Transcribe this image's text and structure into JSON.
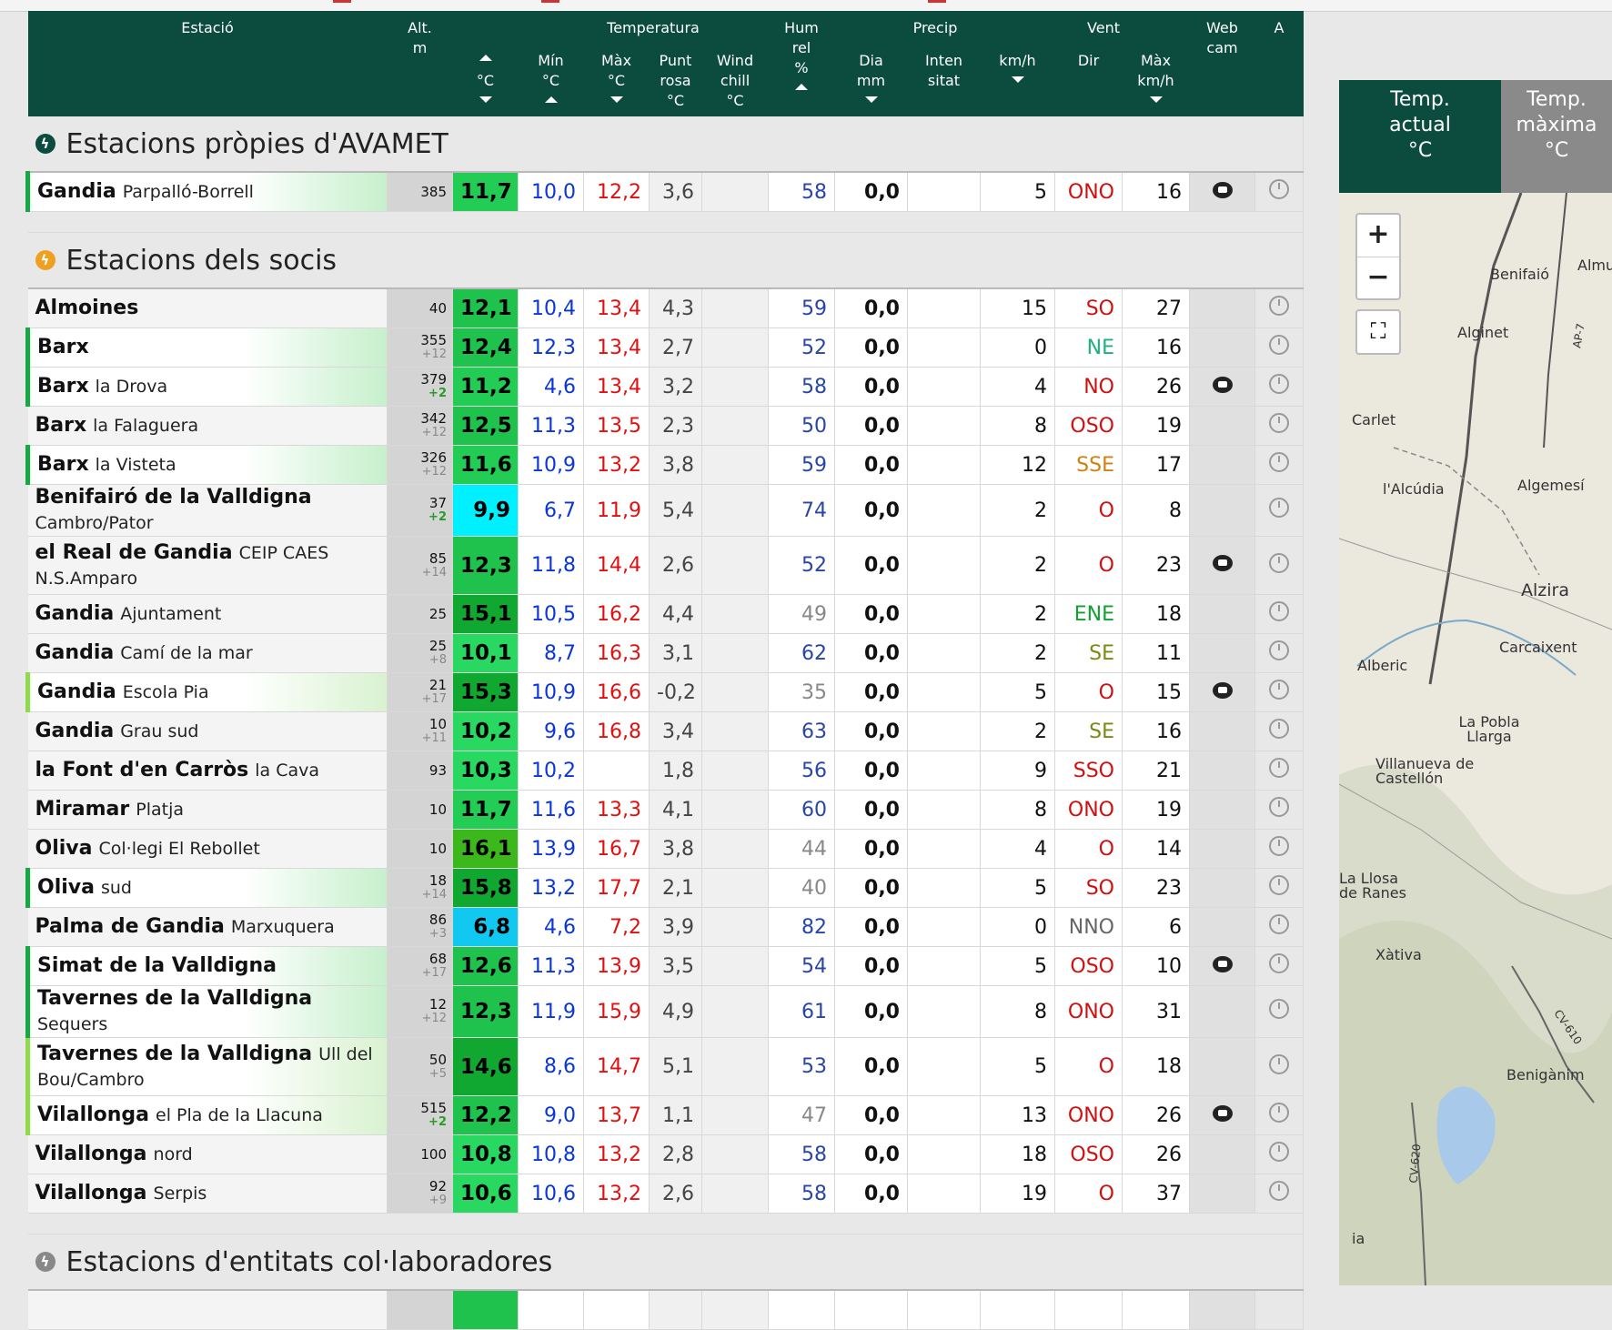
{
  "header": {
    "estacio": "Estació",
    "alt": [
      "Alt.",
      "m"
    ],
    "temperatura": "Temperatura",
    "temp_actual": "°C",
    "min": [
      "Mín",
      "°C"
    ],
    "max": [
      "Màx",
      "°C"
    ],
    "punt_rosa": [
      "Punt",
      "rosa",
      "°C"
    ],
    "wind_chill": [
      "Wind",
      "chill",
      "°C"
    ],
    "hum": [
      "Hum",
      "rel",
      "%"
    ],
    "precip": "Precip",
    "dia": [
      "Dia",
      "mm"
    ],
    "intensitat": [
      "Inten",
      "sitat"
    ],
    "vent": "Vent",
    "kmh": "km/h",
    "dir": "Dir",
    "max_kmh": [
      "Màx",
      "km/h"
    ],
    "webcam": [
      "Web",
      "cam"
    ],
    "a": "A"
  },
  "sections": [
    {
      "title": "Estacions pròpies d'AVAMET",
      "icon_color": "#0b4c3f",
      "rows": [
        {
          "name": "Gandia",
          "sub": "Parpalló-Borrell",
          "alt": "385",
          "altd": "",
          "tc": "11,7",
          "tcbg": "#22cc55",
          "min": "10,0",
          "max": "12,2",
          "dp": "3,6",
          "wc": "",
          "hum": "58",
          "humgray": false,
          "pr": "0,0",
          "in": "",
          "ws": "5",
          "wd": "ONO",
          "wdc": "#d01010",
          "wm": "16",
          "cam": true,
          "border": 1
        }
      ]
    },
    {
      "title": "Estacions dels socis",
      "icon_color": "#f0a020",
      "rows": [
        {
          "name": "Almoines",
          "sub": "",
          "alt": "40",
          "altd": "",
          "tc": "12,1",
          "tcbg": "#1ec24c",
          "min": "10,4",
          "max": "13,4",
          "dp": "4,3",
          "wc": "",
          "hum": "59",
          "humgray": false,
          "pr": "0,0",
          "in": "",
          "ws": "15",
          "wd": "SO",
          "wdc": "#d01010",
          "wm": "27",
          "cam": false,
          "border": 0
        },
        {
          "name": "Barx",
          "sub": "",
          "alt": "355",
          "altd": "+12",
          "altpos": false,
          "tc": "12,4",
          "tcbg": "#1ec24c",
          "min": "12,3",
          "max": "13,4",
          "dp": "2,7",
          "wc": "",
          "hum": "52",
          "humgray": false,
          "pr": "0,0",
          "in": "",
          "ws": "0",
          "wd": "NE",
          "wdc": "#20b080",
          "wm": "16",
          "cam": false,
          "border": 1
        },
        {
          "name": "Barx",
          "sub": "la Drova",
          "alt": "379",
          "altd": "+2",
          "altpos": true,
          "tc": "11,2",
          "tcbg": "#22cc55",
          "min": "4,6",
          "max": "13,4",
          "dp": "3,2",
          "wc": "",
          "hum": "58",
          "humgray": false,
          "pr": "0,0",
          "in": "",
          "ws": "4",
          "wd": "NO",
          "wdc": "#d01010",
          "wm": "26",
          "cam": true,
          "border": 1
        },
        {
          "name": "Barx",
          "sub": "la Falaguera",
          "alt": "342",
          "altd": "+12",
          "altpos": false,
          "tc": "12,5",
          "tcbg": "#1ec24c",
          "min": "11,3",
          "max": "13,5",
          "dp": "2,3",
          "wc": "",
          "hum": "50",
          "humgray": false,
          "pr": "0,0",
          "in": "",
          "ws": "8",
          "wd": "OSO",
          "wdc": "#d01010",
          "wm": "19",
          "cam": false,
          "border": 0
        },
        {
          "name": "Barx",
          "sub": "la Visteta",
          "alt": "326",
          "altd": "+12",
          "altpos": false,
          "tc": "11,6",
          "tcbg": "#22cc55",
          "min": "10,9",
          "max": "13,2",
          "dp": "3,8",
          "wc": "",
          "hum": "59",
          "humgray": false,
          "pr": "0,0",
          "in": "",
          "ws": "12",
          "wd": "SSE",
          "wdc": "#d08010",
          "wm": "17",
          "cam": false,
          "border": 1
        },
        {
          "name": "Benifairó de la Valldigna",
          "sub": "Cambro/Pator",
          "alt": "37",
          "altd": "+2",
          "altpos": true,
          "tc": "9,9",
          "tcbg": "#00f0ff",
          "min": "6,7",
          "max": "11,9",
          "dp": "5,4",
          "wc": "",
          "hum": "74",
          "humgray": false,
          "pr": "0,0",
          "in": "",
          "ws": "2",
          "wd": "O",
          "wdc": "#d01010",
          "wm": "8",
          "cam": false,
          "border": 0
        },
        {
          "name": "el Real de Gandia",
          "sub": "CEIP CAES N.S.Amparo",
          "alt": "85",
          "altd": "+14",
          "altpos": false,
          "tc": "12,3",
          "tcbg": "#1ec24c",
          "min": "11,8",
          "max": "14,4",
          "dp": "2,6",
          "wc": "",
          "hum": "52",
          "humgray": false,
          "pr": "0,0",
          "in": "",
          "ws": "2",
          "wd": "O",
          "wdc": "#d01010",
          "wm": "23",
          "cam": true,
          "border": 0,
          "tall": true
        },
        {
          "name": "Gandia",
          "sub": "Ajuntament",
          "alt": "25",
          "altd": "",
          "tc": "15,1",
          "tcbg": "#10a830",
          "min": "10,5",
          "max": "16,2",
          "dp": "4,4",
          "wc": "",
          "hum": "49",
          "humgray": true,
          "pr": "0,0",
          "in": "",
          "ws": "2",
          "wd": "ENE",
          "wdc": "#10a030",
          "wm": "18",
          "cam": false,
          "border": 0
        },
        {
          "name": "Gandia",
          "sub": "Camí de la mar",
          "alt": "25",
          "altd": "+8",
          "altpos": false,
          "tc": "10,1",
          "tcbg": "#28d860",
          "min": "8,7",
          "max": "16,3",
          "dp": "3,1",
          "wc": "",
          "hum": "62",
          "humgray": false,
          "pr": "0,0",
          "in": "",
          "ws": "2",
          "wd": "SE",
          "wdc": "#7a8a10",
          "wm": "11",
          "cam": false,
          "border": 0
        },
        {
          "name": "Gandia",
          "sub": "Escola Pia",
          "alt": "21",
          "altd": "+17",
          "altpos": false,
          "tc": "15,3",
          "tcbg": "#10a830",
          "min": "10,9",
          "max": "16,6",
          "dp": "-0,2",
          "wc": "",
          "hum": "35",
          "humgray": true,
          "pr": "0,0",
          "in": "",
          "ws": "5",
          "wd": "O",
          "wdc": "#d01010",
          "wm": "15",
          "cam": true,
          "border": 2
        },
        {
          "name": "Gandia",
          "sub": "Grau sud",
          "alt": "10",
          "altd": "+11",
          "altpos": false,
          "tc": "10,2",
          "tcbg": "#28d860",
          "min": "9,6",
          "max": "16,8",
          "dp": "3,4",
          "wc": "",
          "hum": "63",
          "humgray": false,
          "pr": "0,0",
          "in": "",
          "ws": "2",
          "wd": "SE",
          "wdc": "#7a8a10",
          "wm": "16",
          "cam": false,
          "border": 0
        },
        {
          "name": "la Font d'en Carròs",
          "sub": "la Cava",
          "alt": "93",
          "altd": "",
          "tc": "10,3",
          "tcbg": "#28d860",
          "min": "10,2",
          "max": "",
          "dp": "1,8",
          "wc": "",
          "hum": "56",
          "humgray": false,
          "pr": "0,0",
          "in": "",
          "ws": "9",
          "wd": "SSO",
          "wdc": "#d01010",
          "wm": "21",
          "cam": false,
          "border": 0
        },
        {
          "name": "Miramar",
          "sub": "Platja",
          "alt": "10",
          "altd": "",
          "tc": "11,7",
          "tcbg": "#22cc55",
          "min": "11,6",
          "max": "13,3",
          "dp": "4,1",
          "wc": "",
          "hum": "60",
          "humgray": false,
          "pr": "0,0",
          "in": "",
          "ws": "8",
          "wd": "ONO",
          "wdc": "#d01010",
          "wm": "19",
          "cam": false,
          "border": 0
        },
        {
          "name": "Oliva",
          "sub": "Col·legi El Rebollet",
          "alt": "10",
          "altd": "",
          "tc": "16,1",
          "tcbg": "#3cb81c",
          "min": "13,9",
          "max": "16,7",
          "dp": "3,8",
          "wc": "",
          "hum": "44",
          "humgray": true,
          "pr": "0,0",
          "in": "",
          "ws": "4",
          "wd": "O",
          "wdc": "#d01010",
          "wm": "14",
          "cam": false,
          "border": 0
        },
        {
          "name": "Oliva",
          "sub": "sud",
          "alt": "18",
          "altd": "+14",
          "altpos": false,
          "tc": "15,8",
          "tcbg": "#10a830",
          "min": "13,2",
          "max": "17,7",
          "dp": "2,1",
          "wc": "",
          "hum": "40",
          "humgray": true,
          "pr": "0,0",
          "in": "",
          "ws": "5",
          "wd": "SO",
          "wdc": "#d01010",
          "wm": "23",
          "cam": false,
          "border": 1
        },
        {
          "name": "Palma de Gandia",
          "sub": "Marxuquera",
          "alt": "86",
          "altd": "+3",
          "altpos": false,
          "tc": "6,8",
          "tcbg": "#10c8f0",
          "min": "4,6",
          "max": "7,2",
          "dp": "3,9",
          "wc": "",
          "hum": "82",
          "humgray": false,
          "pr": "0,0",
          "in": "",
          "ws": "0",
          "wd": "NNO",
          "wdc": "#666666",
          "wm": "6",
          "cam": false,
          "border": 0
        },
        {
          "name": "Simat de la Valldigna",
          "sub": "",
          "alt": "68",
          "altd": "+17",
          "altpos": false,
          "tc": "12,6",
          "tcbg": "#1ec24c",
          "min": "11,3",
          "max": "13,9",
          "dp": "3,5",
          "wc": "",
          "hum": "54",
          "humgray": false,
          "pr": "0,0",
          "in": "",
          "ws": "5",
          "wd": "OSO",
          "wdc": "#d01010",
          "wm": "10",
          "cam": true,
          "border": 1
        },
        {
          "name": "Tavernes de la Valldigna",
          "sub": "Sequers",
          "alt": "12",
          "altd": "+12",
          "altpos": false,
          "tc": "12,3",
          "tcbg": "#1ec24c",
          "min": "11,9",
          "max": "15,9",
          "dp": "4,9",
          "wc": "",
          "hum": "61",
          "humgray": false,
          "pr": "0,0",
          "in": "",
          "ws": "8",
          "wd": "ONO",
          "wdc": "#d01010",
          "wm": "31",
          "cam": false,
          "border": 1
        },
        {
          "name": "Tavernes de la Valldigna",
          "sub": "Ull del Bou/Cambro",
          "alt": "50",
          "altd": "+5",
          "altpos": false,
          "tc": "14,6",
          "tcbg": "#10a830",
          "min": "8,6",
          "max": "14,7",
          "dp": "5,1",
          "wc": "",
          "hum": "53",
          "humgray": false,
          "pr": "0,0",
          "in": "",
          "ws": "5",
          "wd": "O",
          "wdc": "#d01010",
          "wm": "18",
          "cam": false,
          "border": 2,
          "tall": true
        },
        {
          "name": "Vilallonga",
          "sub": "el Pla de la Llacuna",
          "alt": "515",
          "altd": "+2",
          "altpos": true,
          "tc": "12,2",
          "tcbg": "#1ec24c",
          "min": "9,0",
          "max": "13,7",
          "dp": "1,1",
          "wc": "",
          "hum": "47",
          "humgray": true,
          "pr": "0,0",
          "in": "",
          "ws": "13",
          "wd": "ONO",
          "wdc": "#d01010",
          "wm": "26",
          "cam": true,
          "border": 2
        },
        {
          "name": "Vilallonga",
          "sub": "nord",
          "alt": "100",
          "altd": "",
          "tc": "10,8",
          "tcbg": "#28d860",
          "min": "10,8",
          "max": "13,2",
          "dp": "2,8",
          "wc": "",
          "hum": "58",
          "humgray": false,
          "pr": "0,0",
          "in": "",
          "ws": "18",
          "wd": "OSO",
          "wdc": "#d01010",
          "wm": "26",
          "cam": false,
          "border": 0
        },
        {
          "name": "Vilallonga",
          "sub": "Serpis",
          "alt": "92",
          "altd": "+9",
          "altpos": false,
          "tc": "10,6",
          "tcbg": "#28d860",
          "min": "10,6",
          "max": "13,2",
          "dp": "2,6",
          "wc": "",
          "hum": "58",
          "humgray": false,
          "pr": "0,0",
          "in": "",
          "ws": "19",
          "wd": "O",
          "wdc": "#d01010",
          "wm": "37",
          "cam": false,
          "border": 0
        }
      ]
    },
    {
      "title": "Estacions d'entitats col·laboradores",
      "icon_color": "#888888",
      "rows": []
    }
  ],
  "map": {
    "tab_active": [
      "Temp.",
      "actual",
      "°C"
    ],
    "tab_inactive": [
      "Temp.",
      "màxima",
      "°C"
    ],
    "zoom_in": "+",
    "zoom_out": "−",
    "fullscreen": "⛶",
    "towns": [
      "Benifaió",
      "Almu",
      "Alginet",
      "Carlet",
      "l'Alcúdia",
      "Algemesí",
      "Alzira",
      "Carcaixent",
      "Alberic",
      "La Pobla Llarga",
      "Villanueva de Castellón",
      "La Llosa de Ranes",
      "Xàtiva",
      "Benigànim",
      "AP-7",
      "CV-610",
      "CV-620",
      "ia"
    ]
  }
}
